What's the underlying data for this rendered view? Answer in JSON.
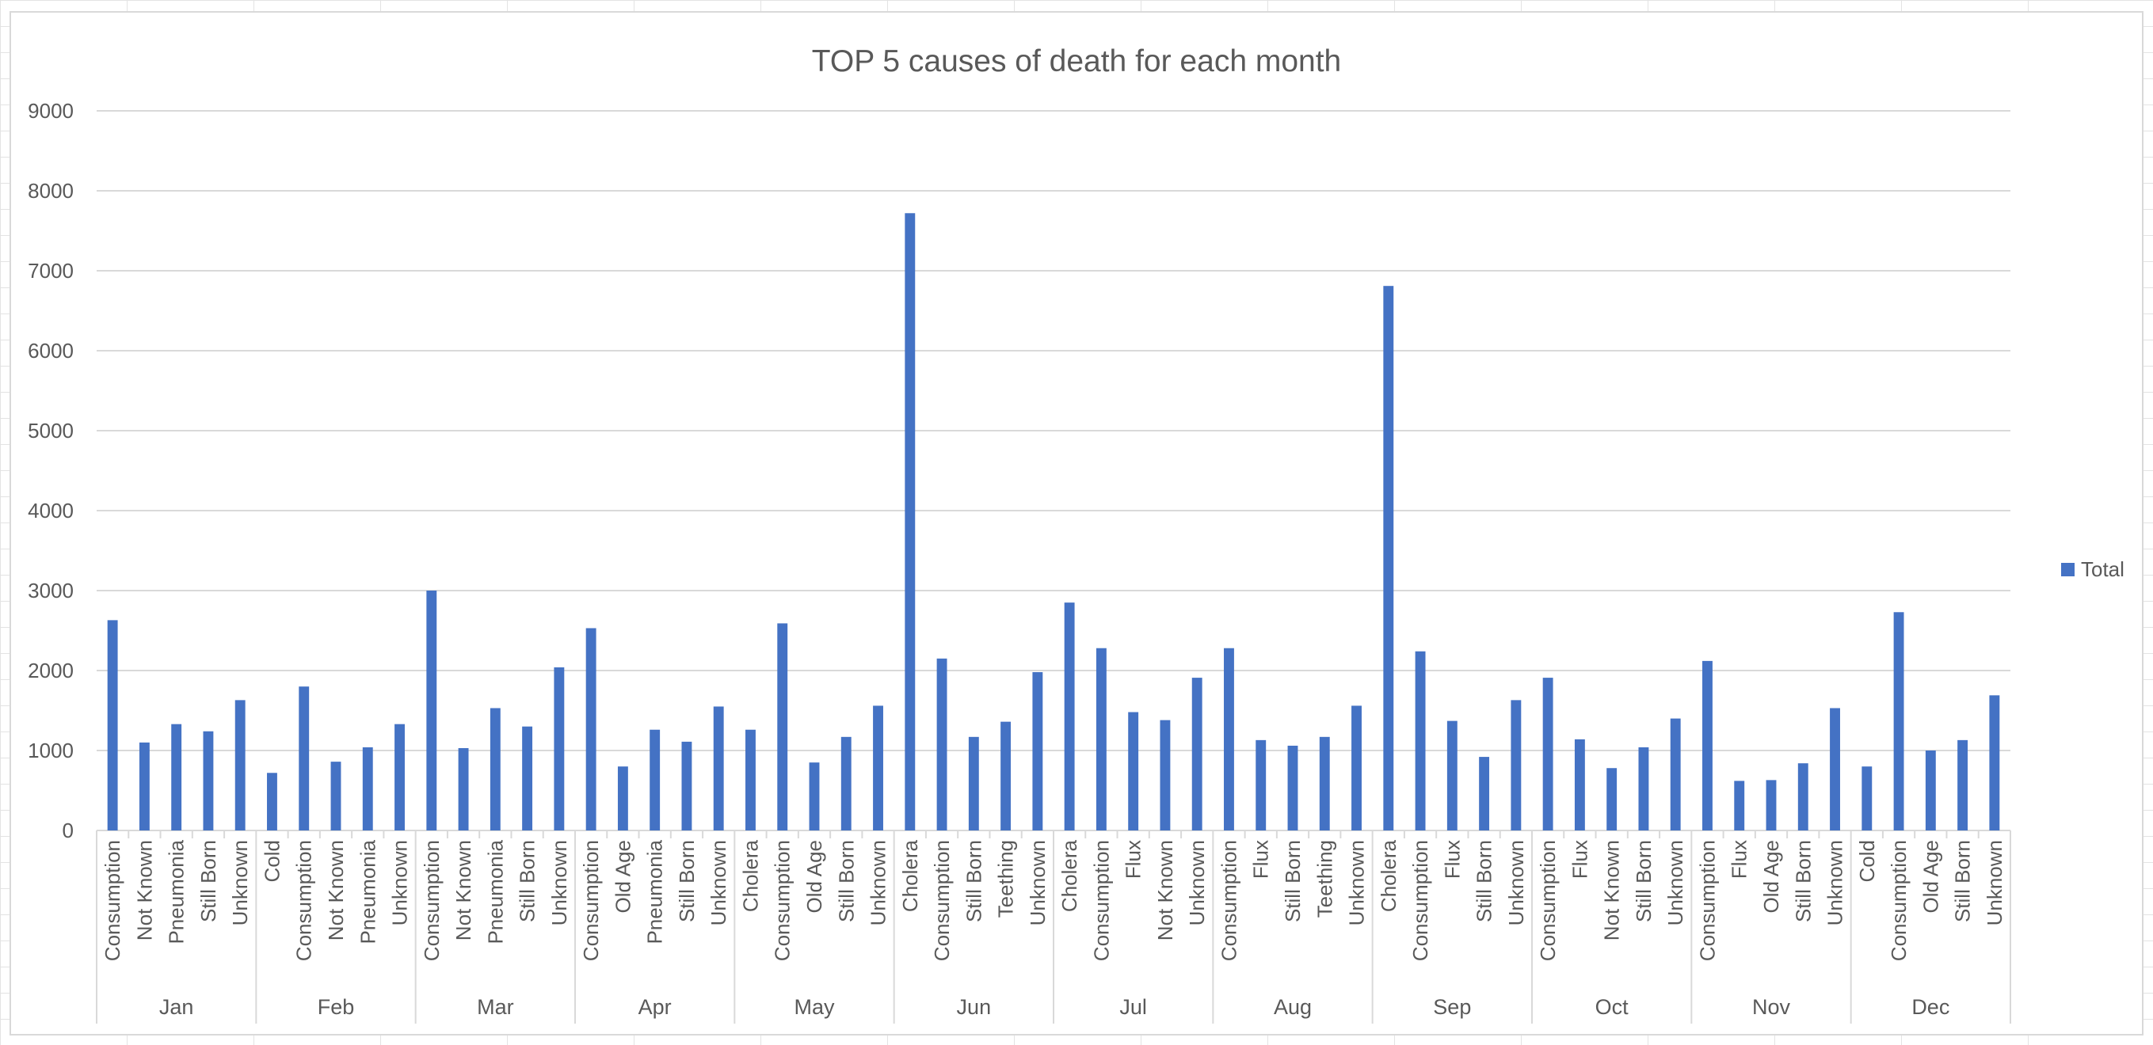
{
  "colors": {
    "series": "#4472c4",
    "gridline": "#d9d9d9",
    "text": "#595959"
  },
  "chart_data": {
    "type": "bar",
    "title": "TOP 5 causes of death for each month",
    "xlabel": "",
    "ylabel": "",
    "ylim": [
      0,
      9000
    ],
    "yticks": [
      0,
      1000,
      2000,
      3000,
      4000,
      5000,
      6000,
      7000,
      8000,
      9000
    ],
    "grid": true,
    "legend_position": "right",
    "groups": [
      {
        "label": "Jan",
        "categories": [
          "Consumption",
          "Not Known",
          "Pneumonia",
          "Still Born",
          "Unknown"
        ],
        "values": [
          2630,
          1100,
          1330,
          1240,
          1630
        ]
      },
      {
        "label": "Feb",
        "categories": [
          "Cold",
          "Consumption",
          "Not Known",
          "Pneumonia",
          "Unknown"
        ],
        "values": [
          720,
          1800,
          860,
          1040,
          1330
        ]
      },
      {
        "label": "Mar",
        "categories": [
          "Consumption",
          "Not Known",
          "Pneumonia",
          "Still Born",
          "Unknown"
        ],
        "values": [
          3000,
          1030,
          1530,
          1300,
          2040
        ]
      },
      {
        "label": "Apr",
        "categories": [
          "Consumption",
          "Old Age",
          "Pneumonia",
          "Still Born",
          "Unknown"
        ],
        "values": [
          2530,
          800,
          1260,
          1110,
          1550
        ]
      },
      {
        "label": "May",
        "categories": [
          "Cholera",
          "Consumption",
          "Old Age",
          "Still Born",
          "Unknown"
        ],
        "values": [
          1260,
          2590,
          850,
          1170,
          1560
        ]
      },
      {
        "label": "Jun",
        "categories": [
          "Cholera",
          "Consumption",
          "Still Born",
          "Teething",
          "Unknown"
        ],
        "values": [
          7720,
          2150,
          1170,
          1360,
          1980
        ]
      },
      {
        "label": "Jul",
        "categories": [
          "Cholera",
          "Consumption",
          "Flux",
          "Not Known",
          "Unknown"
        ],
        "values": [
          2850,
          2280,
          1480,
          1380,
          1910
        ]
      },
      {
        "label": "Aug",
        "categories": [
          "Consumption",
          "Flux",
          "Still Born",
          "Teething",
          "Unknown"
        ],
        "values": [
          2280,
          1130,
          1060,
          1170,
          1560
        ]
      },
      {
        "label": "Sep",
        "categories": [
          "Cholera",
          "Consumption",
          "Flux",
          "Still Born",
          "Unknown"
        ],
        "values": [
          6810,
          2240,
          1370,
          920,
          1630
        ]
      },
      {
        "label": "Oct",
        "categories": [
          "Consumption",
          "Flux",
          "Not Known",
          "Still Born",
          "Unknown"
        ],
        "values": [
          1910,
          1140,
          780,
          1040,
          1400
        ]
      },
      {
        "label": "Nov",
        "categories": [
          "Consumption",
          "Flux",
          "Old Age",
          "Still Born",
          "Unknown"
        ],
        "values": [
          2120,
          620,
          630,
          840,
          1530
        ]
      },
      {
        "label": "Dec",
        "categories": [
          "Cold",
          "Consumption",
          "Old Age",
          "Still Born",
          "Unknown"
        ],
        "values": [
          800,
          2730,
          1000,
          1130,
          1690
        ]
      }
    ],
    "series": [
      {
        "name": "Total"
      }
    ]
  }
}
